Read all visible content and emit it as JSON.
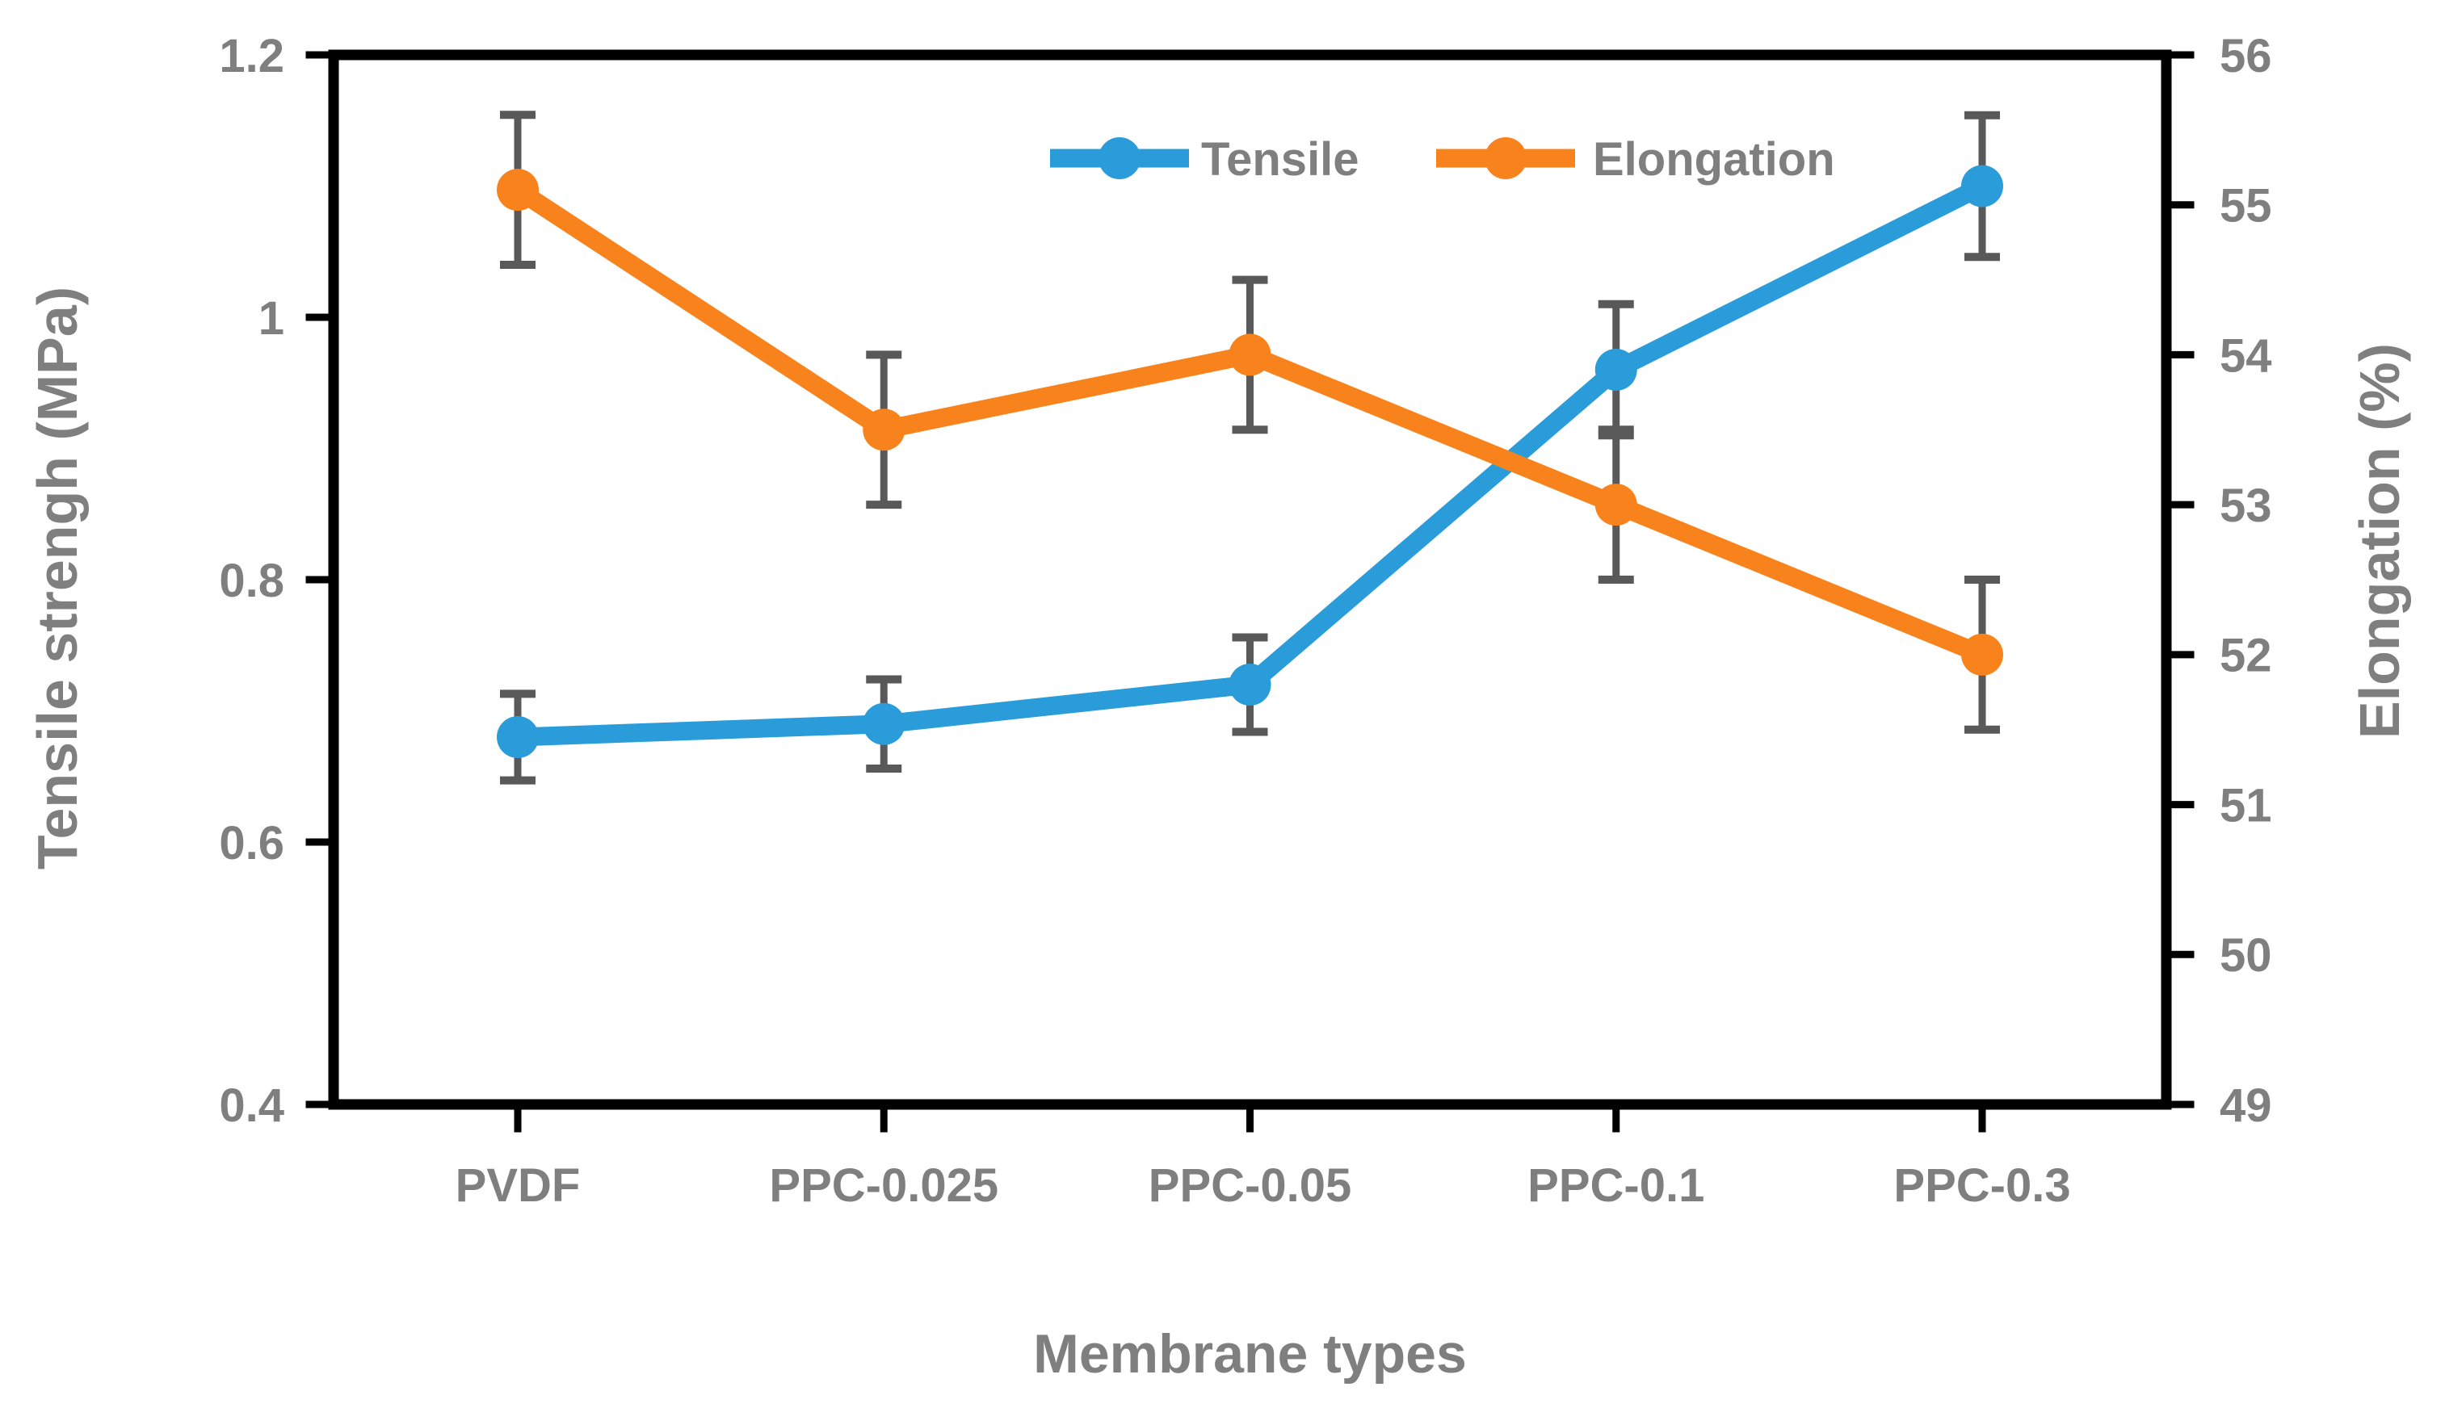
{
  "chart_data": {
    "type": "line",
    "title": "",
    "xlabel": "Membrane types",
    "categories": [
      "PVDF",
      "PPC-0.025",
      "PPC-0.05",
      "PPC-0.1",
      "PPC-0.3"
    ],
    "series": [
      {
        "name": "Tensile",
        "axis": "left",
        "color": "#2a9cd9",
        "marker": "circle",
        "values": [
          0.68,
          0.69,
          0.72,
          0.96,
          1.1
        ],
        "errors": [
          0.033,
          0.034,
          0.036,
          0.05,
          0.054
        ]
      },
      {
        "name": "Elongation",
        "axis": "right",
        "color": "#f8831d",
        "marker": "circle",
        "values": [
          55.1,
          53.5,
          54.0,
          53.0,
          52.0
        ],
        "errors": [
          0.5,
          0.5,
          0.5,
          0.5,
          0.5
        ]
      }
    ],
    "y_left": {
      "label": "Tensile strengh (MPa)",
      "min": 0.4,
      "max": 1.2,
      "ticks": [
        1.2,
        1,
        0.8,
        0.6,
        0.4
      ]
    },
    "y_right": {
      "label": "Elongation (%)",
      "min": 49,
      "max": 56,
      "ticks": [
        56,
        55,
        54,
        53,
        52,
        51,
        50,
        49
      ]
    },
    "legend": {
      "position": "top-center-inside",
      "items": [
        "Tensile",
        "Elongation"
      ]
    },
    "grid": false,
    "colors": {
      "error_bar": "#595959",
      "text": "#7f7f7f",
      "axis": "#000000",
      "background": "#ffffff"
    }
  }
}
